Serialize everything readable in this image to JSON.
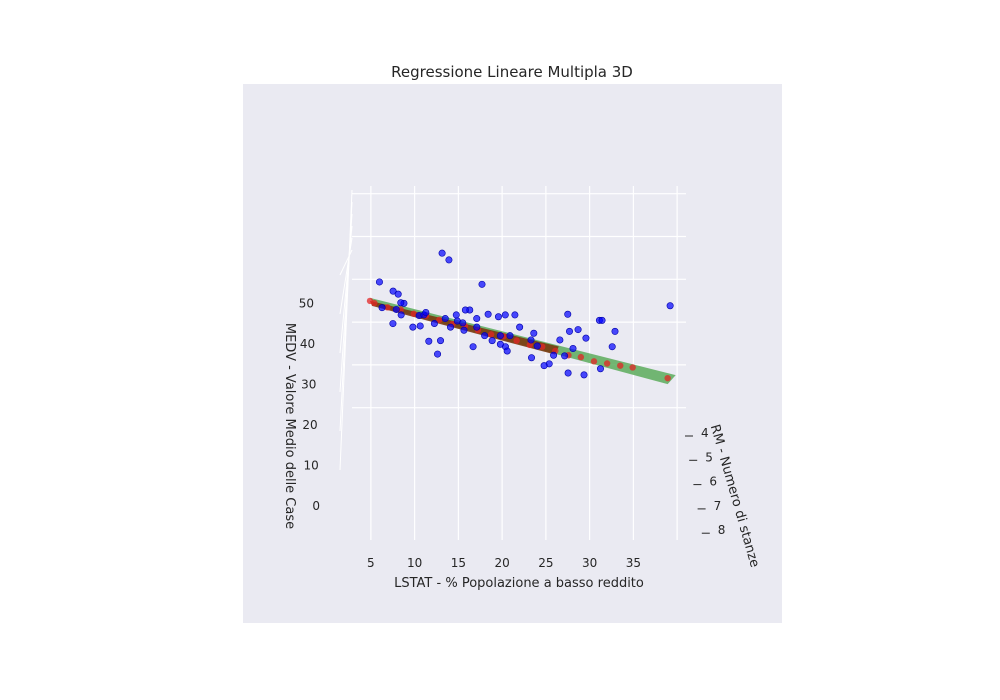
{
  "chart_data": {
    "type": "scatter",
    "title": "Regressione Lineare Multipla 3D",
    "xlabel": "LSTAT - % Popolazione a basso reddito",
    "ylabel": "RM - Numero di stanze",
    "zlabel": "MEDV - Valore Medio delle Case",
    "x_ticks": [
      "5",
      "10",
      "15",
      "20",
      "25",
      "30",
      "35"
    ],
    "y_ticks": [
      "4",
      "5",
      "6",
      "7",
      "8"
    ],
    "z_ticks": [
      "0",
      "10",
      "20",
      "30",
      "40",
      "50"
    ],
    "xlim": [
      1.7,
      38
    ],
    "ylim": [
      3.5,
      8.8
    ],
    "zlim": [
      -3,
      55
    ],
    "grid": true,
    "colors": {
      "points": "#0000ff",
      "predicted": "#e32626",
      "plane_front": "#5cab5c",
      "plane_back": "#7a3a0f",
      "pane": "#eaeaf2",
      "grid": "#ffffff"
    },
    "series": [
      {
        "name": "",
        "role": "actual",
        "points": [
          [
            3.5,
            6.6,
            50
          ],
          [
            4.9,
            6.8,
            49
          ],
          [
            5.8,
            6.4,
            46
          ],
          [
            6.3,
            6.6,
            45
          ],
          [
            4.8,
            6.9,
            42
          ],
          [
            5.5,
            6.5,
            43
          ],
          [
            6.3,
            6.2,
            40
          ],
          [
            8.2,
            6.4,
            41
          ],
          [
            8.9,
            6.2,
            40
          ],
          [
            10.9,
            6.3,
            55
          ],
          [
            11.6,
            6.4,
            54
          ],
          [
            9.2,
            6.1,
            40
          ],
          [
            10.1,
            6.2,
            38
          ],
          [
            11.5,
            6.0,
            38
          ],
          [
            12.8,
            6.1,
            38
          ],
          [
            14.3,
            6.0,
            40
          ],
          [
            16.4,
            6.0,
            39
          ],
          [
            17.5,
            6.1,
            39
          ],
          [
            18.2,
            6.2,
            40
          ],
          [
            19.3,
            6.2,
            40
          ],
          [
            15.7,
            6.0,
            46
          ],
          [
            13.8,
            6.0,
            40
          ],
          [
            13.5,
            6.0,
            37
          ],
          [
            12.1,
            6.0,
            36
          ],
          [
            9.3,
            6.4,
            35
          ],
          [
            7.8,
            6.0,
            36
          ],
          [
            15.1,
            6.0,
            36
          ],
          [
            16.7,
            6.2,
            34
          ],
          [
            17.8,
            6.0,
            34
          ],
          [
            18.3,
            6.1,
            32
          ],
          [
            17.8,
            6.0,
            32
          ],
          [
            18.5,
            6.1,
            31
          ],
          [
            21.3,
            6.0,
            33
          ],
          [
            21.7,
            5.9,
            34
          ],
          [
            21.2,
            6.2,
            30
          ],
          [
            22.1,
            5.9,
            31
          ],
          [
            23.3,
            6.1,
            28
          ],
          [
            23.8,
            6.1,
            30
          ],
          [
            24.9,
            6.3,
            31
          ],
          [
            25.7,
            6.0,
            35
          ],
          [
            25.5,
            6.0,
            39
          ],
          [
            26.6,
            6.1,
            36
          ],
          [
            27.5,
            6.1,
            34
          ],
          [
            29.2,
            5.9,
            37
          ],
          [
            29.5,
            5.9,
            37
          ],
          [
            30.9,
            6.0,
            35
          ],
          [
            30.5,
            6.1,
            32
          ],
          [
            29.0,
            6.3,
            28
          ],
          [
            25.3,
            6.3,
            27
          ],
          [
            27.2,
            6.2,
            26
          ],
          [
            22.8,
            6.0,
            27
          ],
          [
            37.2,
            6.0,
            41
          ],
          [
            3.8,
            6.6,
            44
          ],
          [
            6.1,
            6.4,
            44
          ],
          [
            8.4,
            6.3,
            38
          ],
          [
            10.8,
            6.2,
            34
          ],
          [
            12.6,
            6.2,
            40
          ],
          [
            13.4,
            6.3,
            37
          ],
          [
            15.1,
            6.0,
            38
          ],
          [
            16.0,
            6.0,
            34
          ],
          [
            20.0,
            6.0,
            36
          ],
          [
            26.1,
            6.0,
            31
          ],
          [
            10.3,
            6.4,
            32
          ],
          [
            14.6,
            6.1,
            32
          ],
          [
            18.9,
            6.0,
            34
          ],
          [
            24.6,
            6.0,
            33
          ]
        ]
      },
      {
        "name": "",
        "role": "predicted",
        "points": [
          [
            2.5,
            6.5,
            45
          ],
          [
            3.0,
            6.5,
            44.5
          ],
          [
            4.5,
            6.5,
            43.5
          ],
          [
            6.0,
            6.5,
            43
          ],
          [
            7.5,
            6.5,
            42
          ],
          [
            9.0,
            6.4,
            41
          ],
          [
            10.5,
            6.4,
            40
          ],
          [
            12.0,
            6.4,
            39
          ],
          [
            13.5,
            6.3,
            38
          ],
          [
            15.0,
            6.3,
            37
          ],
          [
            16.5,
            6.3,
            36
          ],
          [
            18.0,
            6.2,
            35
          ],
          [
            19.5,
            6.2,
            34
          ],
          [
            21.0,
            6.2,
            33
          ],
          [
            22.5,
            6.1,
            32
          ],
          [
            24.0,
            6.1,
            31
          ],
          [
            25.5,
            6.1,
            30
          ],
          [
            27.0,
            6.0,
            29
          ],
          [
            28.5,
            6.0,
            28
          ],
          [
            30.0,
            6.0,
            27.5
          ],
          [
            31.5,
            6.0,
            27
          ],
          [
            33.0,
            5.9,
            26
          ],
          [
            37.0,
            5.9,
            23.5
          ]
        ]
      }
    ]
  }
}
